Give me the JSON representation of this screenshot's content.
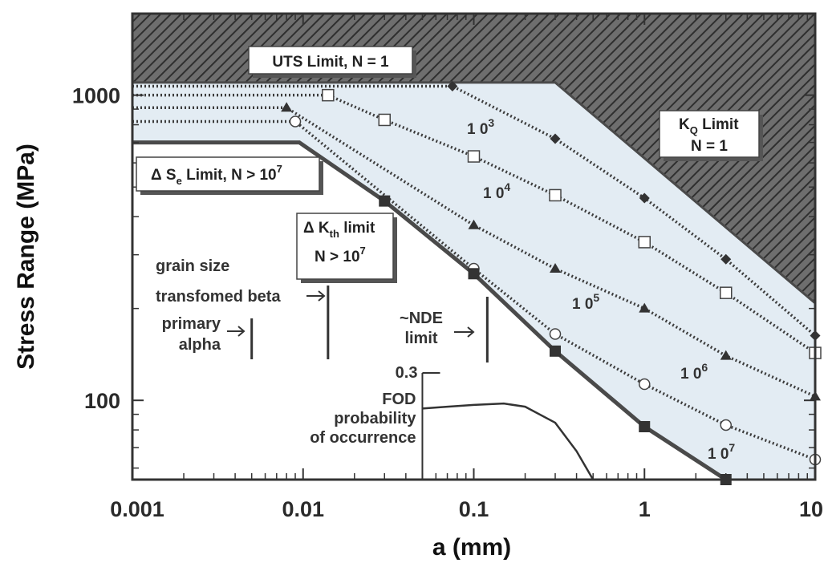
{
  "chart_data": {
    "type": "line",
    "xscale": "log",
    "yscale": "log",
    "xlim": [
      0.001,
      10
    ],
    "ylim": [
      55,
      1850
    ],
    "xlabel": "a (mm)",
    "ylabel": "Stress Range (MPa)",
    "x_ticks": [
      {
        "value": 0.001,
        "label": "0.001"
      },
      {
        "value": 0.01,
        "label": "0.01"
      },
      {
        "value": 0.1,
        "label": "0.1"
      },
      {
        "value": 1,
        "label": "1"
      },
      {
        "value": 10,
        "label": "10"
      }
    ],
    "y_ticks": [
      {
        "value": 100,
        "label": "100"
      },
      {
        "value": 1000,
        "label": "1000"
      }
    ],
    "series": [
      {
        "name": "1 0^3",
        "marker": "diamond",
        "x": [
          0.001,
          0.075,
          0.3,
          1,
          3,
          10
        ],
        "y": [
          1070,
          1070,
          720,
          460,
          290,
          163
        ]
      },
      {
        "name": "1 0^4",
        "marker": "open-square",
        "x": [
          0.001,
          0.014,
          0.03,
          0.1,
          0.3,
          1,
          3,
          10
        ],
        "y": [
          1000,
          1000,
          830,
          630,
          470,
          330,
          225,
          143
        ]
      },
      {
        "name": "1 0^5",
        "marker": "triangle",
        "x": [
          0.001,
          0.008,
          0.1,
          0.3,
          1,
          3,
          10
        ],
        "y": [
          910,
          910,
          375,
          270,
          200,
          140,
          103
        ]
      },
      {
        "name": "1 0^6",
        "marker": "open-circle",
        "x": [
          0.001,
          0.009,
          0.1,
          0.3,
          1,
          3,
          10
        ],
        "y": [
          820,
          820,
          270,
          165,
          113,
          83,
          64
        ]
      },
      {
        "name": "1 0^7",
        "marker": "filled-square",
        "x": [
          0.03,
          0.1,
          0.3,
          1,
          3
        ],
        "y": [
          450,
          260,
          145,
          82,
          55
        ]
      }
    ],
    "regions": {
      "uts_limit": {
        "label": "UTS Limit, N = 1",
        "stress": 1100,
        "ends_at_a": 0.3
      },
      "kq_limit": {
        "label_main": "K",
        "label_sub": "Q",
        "label_tail": " Limit",
        "label_line2": "N = 1"
      },
      "endurance_limit": {
        "label_a": "Δ S",
        "label_sub": "e",
        "label_b": " Limit, N > 10",
        "label_sup": "7",
        "stress": 700,
        "ends_at_a": 0.0095
      },
      "threshold_limit": {
        "label_a": "Δ K",
        "label_sub": "th",
        "label_b": " limit",
        "label_line2": "N > 10",
        "label_line2_sup": "7"
      }
    },
    "annotations": [
      {
        "lines": [
          "grain size"
        ]
      },
      {
        "lines": [
          "transfomed beta"
        ],
        "at_a": 0.014
      },
      {
        "lines": [
          "primary",
          "alpha"
        ],
        "at_a": 0.005
      },
      {
        "lines": [
          "~NDE",
          "limit"
        ],
        "at_a": 0.12
      }
    ],
    "fod_inset": {
      "label_lines": [
        "FOD",
        "probability",
        "of occurrence"
      ],
      "max_label": "0.3",
      "curve_x": [
        0.05,
        0.07,
        0.1,
        0.15,
        0.2,
        0.3,
        0.4,
        0.5
      ],
      "curve_y": [
        0.2,
        0.205,
        0.21,
        0.214,
        0.205,
        0.16,
        0.08,
        0.0
      ]
    },
    "colors": {
      "shade_fill": "#e3ecf3",
      "hatch_bg": "#707070",
      "hatch_line": "#3a3a3a",
      "boundary": "#4a4a4a",
      "series_line": "#3c3c3c"
    }
  }
}
